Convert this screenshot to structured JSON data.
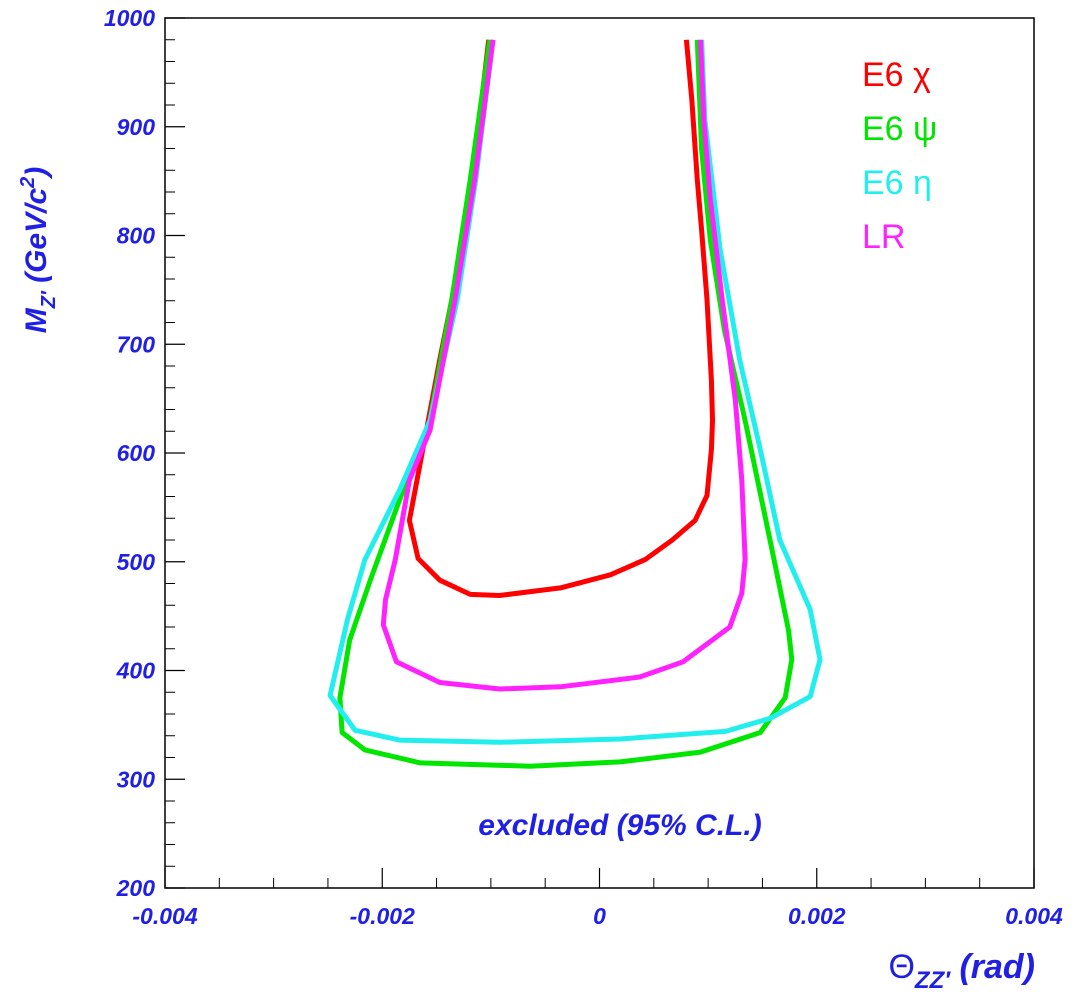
{
  "chart_data": {
    "type": "line",
    "x_label": [
      "Θ",
      "ZZ′",
      " (rad)"
    ],
    "y_label": [
      "M",
      "Z′",
      " (GeV/c",
      "2",
      ")"
    ],
    "annotation": "excluded (95% C.L.)",
    "xlim": [
      -0.004,
      0.004
    ],
    "ylim": [
      200,
      1000
    ],
    "xticks": [
      -0.004,
      -0.002,
      0,
      0.002,
      0.004
    ],
    "yticks": [
      200,
      300,
      400,
      500,
      600,
      700,
      800,
      900,
      1000
    ],
    "legend": "upper right",
    "series": [
      {
        "name": "E6 χ",
        "color": "#ff0000",
        "x": [
          -0.00102,
          -0.00117,
          -0.00136,
          -0.00147,
          -0.00161,
          -0.00175,
          -0.00167,
          -0.00147,
          -0.00119,
          -0.00092,
          -0.00036,
          0.0001,
          0.00042,
          0.00067,
          0.00088,
          0.00099,
          0.00103,
          0.00104,
          0.00103,
          0.00099,
          0.00094,
          0.0009,
          0.00085,
          0.0008
        ],
        "values": [
          980,
          851,
          741,
          686,
          612,
          538,
          503,
          483,
          470,
          469,
          476,
          488,
          502,
          520,
          538,
          561,
          603,
          630,
          667,
          741,
          805,
          851,
          925,
          980
        ]
      },
      {
        "name": "E6 ψ",
        "color": "#00e600",
        "x": [
          -0.00101,
          -0.00119,
          -0.00136,
          -0.00156,
          -0.00184,
          -0.00211,
          -0.0023,
          -0.00239,
          -0.00237,
          -0.00216,
          -0.00165,
          -0.00064,
          0.00019,
          0.00093,
          0.00148,
          0.00171,
          0.00177,
          0.00174,
          0.00157,
          0.00134,
          0.00115,
          0.00102,
          0.00094,
          0.0009
        ],
        "values": [
          980,
          851,
          741,
          630,
          557,
          483,
          428,
          375,
          343,
          327,
          315,
          312,
          316,
          325,
          343,
          375,
          410,
          437,
          520,
          630,
          713,
          796,
          879,
          980
        ]
      },
      {
        "name": "E6 η",
        "color": "#22eeee",
        "x": [
          -0.00098,
          -0.00114,
          -0.00131,
          -0.00156,
          -0.00184,
          -0.00216,
          -0.00232,
          -0.00248,
          -0.00225,
          -0.00184,
          -0.00092,
          0.00019,
          0.00116,
          0.00157,
          0.00194,
          0.00203,
          0.00194,
          0.00166,
          0.00148,
          0.00129,
          0.00111,
          0.00097,
          0.00094
        ],
        "values": [
          980,
          851,
          741,
          630,
          566,
          502,
          447,
          377,
          345,
          336,
          334,
          337,
          344,
          356,
          376,
          410,
          456,
          520,
          603,
          686,
          787,
          906,
          980
        ]
      },
      {
        "name": "LR",
        "color": "#ff22ff",
        "x": [
          -0.00098,
          -0.00115,
          -0.00133,
          -0.00156,
          -0.00175,
          -0.00188,
          -0.00197,
          -0.00199,
          -0.00187,
          -0.00147,
          -0.00092,
          -0.00036,
          0.00037,
          0.00077,
          0.0012,
          0.00131,
          0.00134,
          0.00131,
          0.00125,
          0.00113,
          0.00102,
          0.00096,
          0.00093
        ],
        "values": [
          980,
          851,
          741,
          621,
          575,
          502,
          465,
          442,
          408,
          389,
          383,
          385,
          394,
          408,
          440,
          471,
          502,
          575,
          649,
          741,
          833,
          906,
          980
        ]
      }
    ]
  }
}
